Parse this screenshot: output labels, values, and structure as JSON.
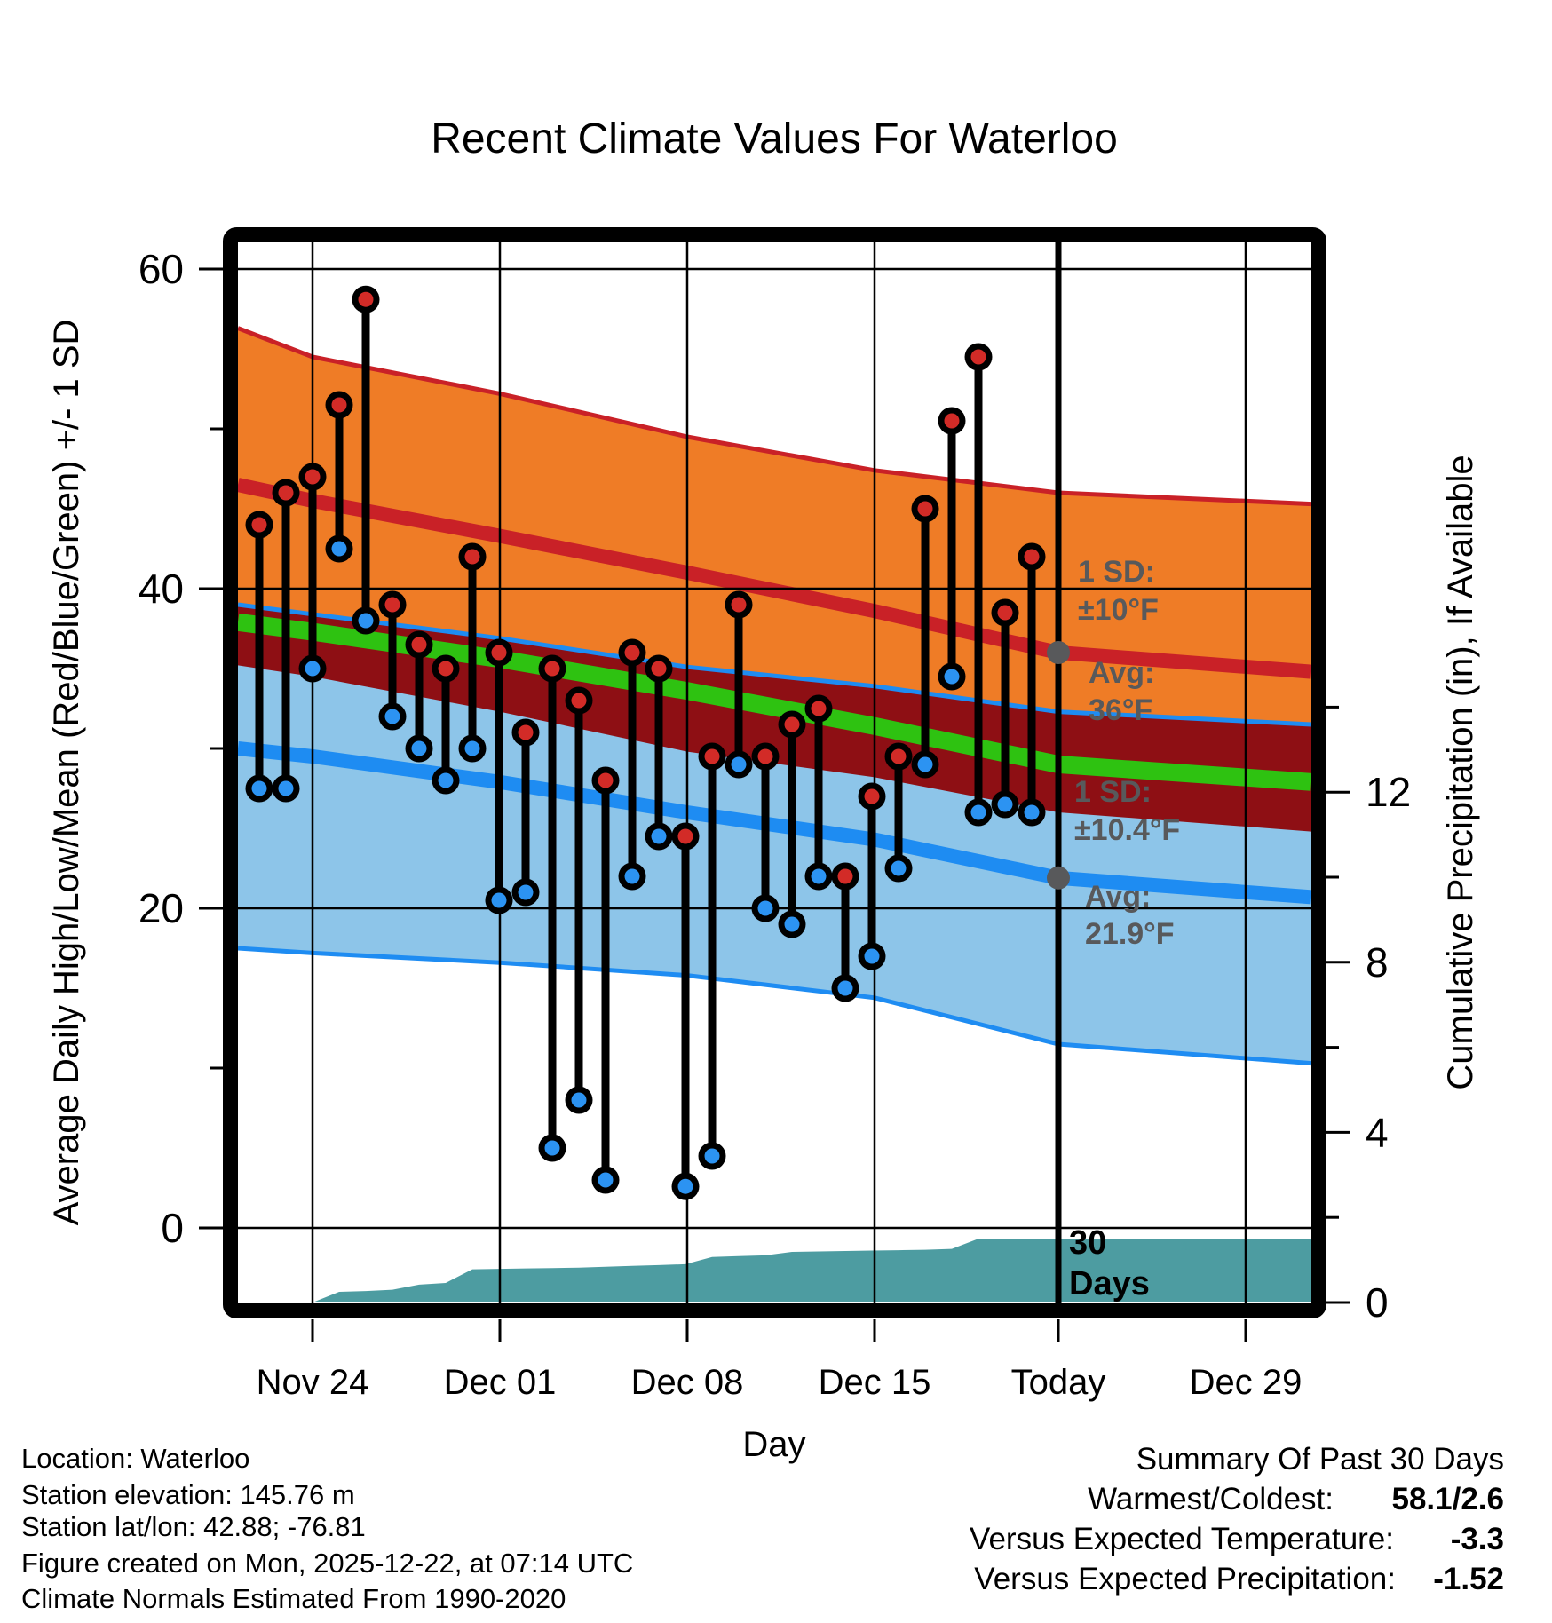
{
  "title": "Recent Climate Values For Waterloo",
  "axes": {
    "x_label": "Day",
    "y_left_label": "Average Daily High/Low/Mean (Red/Blue/Green) +/- 1 SD",
    "y_right_label": "Cumulative Precipitation (in), If Available",
    "x_ticks": [
      "Nov 24",
      "Dec 01",
      "Dec 08",
      "Dec 15",
      "Today",
      "Dec 29"
    ],
    "y_left_ticks": [
      60,
      40,
      20,
      0
    ],
    "y_left_minor_ticks": [
      50,
      30,
      10
    ],
    "y_right_ticks": [
      12,
      8,
      4,
      0
    ],
    "y_right_minor_ticks": [
      14,
      10,
      6,
      2
    ],
    "y_left_range": [
      -4.7,
      61.7
    ],
    "y_right_range": [
      0,
      25
    ],
    "grid": true
  },
  "chart_data": {
    "type": "combo",
    "description": "Daily high/low temperature stems over climate-normal bands, plus cumulative precipitation area",
    "x": [
      "Nov 22",
      "Nov 23",
      "Nov 24",
      "Nov 25",
      "Nov 26",
      "Nov 27",
      "Nov 28",
      "Nov 29",
      "Nov 30",
      "Dec 01",
      "Dec 02",
      "Dec 03",
      "Dec 04",
      "Dec 05",
      "Dec 06",
      "Dec 07",
      "Dec 08",
      "Dec 09",
      "Dec 10",
      "Dec 11",
      "Dec 12",
      "Dec 13",
      "Dec 14",
      "Dec 15",
      "Dec 16",
      "Dec 17",
      "Dec 18",
      "Dec 19",
      "Dec 20",
      "Dec 21"
    ],
    "series": [
      {
        "name": "daily_high_F",
        "type": "stem-dot",
        "color_key": "high_dot",
        "values": [
          44,
          46,
          47,
          51.5,
          58.1,
          39,
          36.5,
          35,
          42,
          36,
          31,
          35,
          33,
          28,
          36,
          35,
          24.5,
          29.5,
          39,
          29.5,
          31.5,
          32.5,
          22,
          27,
          29.5,
          45,
          50.5,
          54.5,
          38.5,
          42
        ]
      },
      {
        "name": "daily_low_F",
        "type": "stem-dot",
        "color_key": "low_dot",
        "values": [
          27.5,
          27.5,
          35,
          42.5,
          38,
          32,
          30,
          28,
          30,
          20.5,
          21,
          5,
          8,
          3,
          22,
          24.5,
          2.6,
          4.5,
          29,
          20,
          19,
          22,
          15,
          17,
          22.5,
          29,
          34.5,
          26,
          26.5,
          26
        ]
      },
      {
        "name": "cumulative_precip_in",
        "type": "area",
        "color_key": "precip_fill",
        "values": [
          0,
          0,
          0,
          0.25,
          0.27,
          0.3,
          0.42,
          0.46,
          0.78,
          0.79,
          0.8,
          0.81,
          0.82,
          0.84,
          0.86,
          0.88,
          0.9,
          1.07,
          1.09,
          1.11,
          1.19,
          1.2,
          1.21,
          1.22,
          1.23,
          1.24,
          1.26,
          1.5,
          1.5,
          1.5
        ]
      }
    ],
    "normals": {
      "anchor_labels": [
        "plot-left",
        "Nov 24",
        "Dec 01",
        "Dec 08",
        "Dec 15",
        "Today",
        "plot-right"
      ],
      "high_plus_sd": [
        56.3,
        54.5,
        52.2,
        49.5,
        47.4,
        46.0,
        45.3
      ],
      "avg_high": [
        46.5,
        45.5,
        43.3,
        41.0,
        38.6,
        36.0,
        34.8
      ],
      "low_plus_sd": [
        39.0,
        38.4,
        36.9,
        35.1,
        33.9,
        32.3,
        31.5
      ],
      "mean": [
        37.9,
        37.3,
        35.6,
        33.6,
        31.4,
        29.0,
        27.9
      ],
      "high_minus_sd": [
        35.2,
        34.5,
        32.3,
        29.8,
        28.2,
        26.0,
        24.8
      ],
      "avg_low": [
        30.0,
        29.5,
        27.9,
        26.0,
        24.3,
        21.9,
        20.7
      ],
      "low_minus_sd": [
        17.5,
        17.2,
        16.6,
        15.8,
        14.4,
        11.5,
        10.3
      ]
    },
    "today_tick_index": 4
  },
  "annotations": {
    "sd_high_line1": "1 SD:",
    "sd_high_line2": "±10°F",
    "avg_high_line1": "Avg:",
    "avg_high_line2": "36°F",
    "sd_low_line1": "1 SD:",
    "sd_low_line2": "±10.4°F",
    "avg_low_line1": "Avg:",
    "avg_low_line2": "21.9°F",
    "period_line1": "30",
    "period_line2": "Days",
    "avg_high_marker_F": 36,
    "avg_low_marker_F": 21.9
  },
  "summary": {
    "title": "Summary Of Past 30 Days",
    "rows": [
      {
        "label": "Warmest/Coldest:",
        "value": "58.1/2.6"
      },
      {
        "label": "Versus Expected Temperature:",
        "value": "-3.3"
      },
      {
        "label": "Versus Expected Precipitation:",
        "value": "-1.52"
      }
    ]
  },
  "footer": {
    "lines": [
      "Location: Waterloo",
      "Station elevation: 145.76 m",
      "Station lat/lon: 42.88; -76.81",
      "Figure created on Mon, 2025-12-22, at 07:14 UTC",
      "Climate Normals Estimated From 1990-2020"
    ]
  },
  "colors": {
    "high_band": "#EF7C26",
    "high_line": "#C92127",
    "overlap_band": "#8E0F14",
    "mean_line": "#2EC211",
    "low_band": "#8DC5E9",
    "low_line": "#1E8CF2",
    "precip_fill": "#4D9CA1",
    "high_dot": "#D22B27",
    "low_dot": "#2C93F2",
    "stem": "#000000",
    "annotation_gray": "#58595B",
    "temp_delta_value": "#1E8CF2",
    "precip_delta_value": "#A75419"
  }
}
